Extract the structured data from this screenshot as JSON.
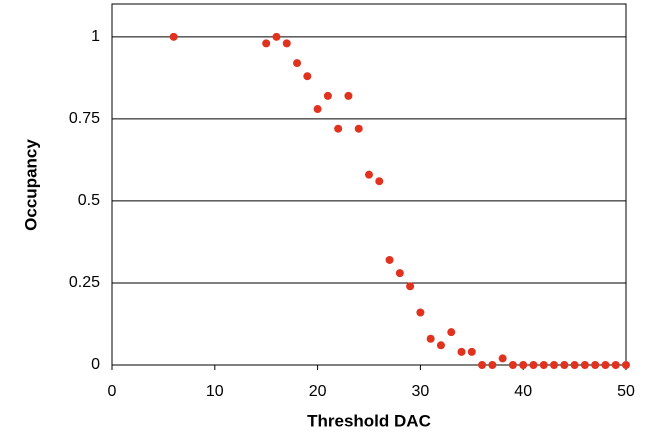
{
  "chart_data": {
    "type": "scatter",
    "x_label": "Threshold DAC",
    "y_label": "Occupancy",
    "x": [
      6,
      15,
      16,
      17,
      18,
      19,
      20,
      21,
      22,
      23,
      24,
      25,
      26,
      27,
      28,
      29,
      30,
      31,
      32,
      33,
      34,
      35,
      36,
      37,
      38,
      39,
      40,
      41,
      42,
      43,
      44,
      45,
      46,
      47,
      48,
      49,
      50
    ],
    "values": [
      1,
      0.98,
      1,
      0.98,
      0.92,
      0.88,
      0.78,
      0.82,
      0.72,
      0.82,
      0.72,
      0.58,
      0.56,
      0.32,
      0.28,
      0.24,
      0.16,
      0.08,
      0.06,
      0.1,
      0.04,
      0.04,
      0,
      0,
      0.02,
      0,
      0,
      0,
      0,
      0,
      0,
      0,
      0,
      0,
      0,
      0,
      0
    ],
    "color": "#e0321e",
    "xlim": [
      0,
      50
    ],
    "xticks": [
      0,
      10,
      20,
      30,
      40,
      50
    ],
    "ylim": [
      0,
      1.1
    ],
    "yticks": [
      0,
      0.25,
      0.5,
      0.75,
      1
    ],
    "grid": true
  }
}
